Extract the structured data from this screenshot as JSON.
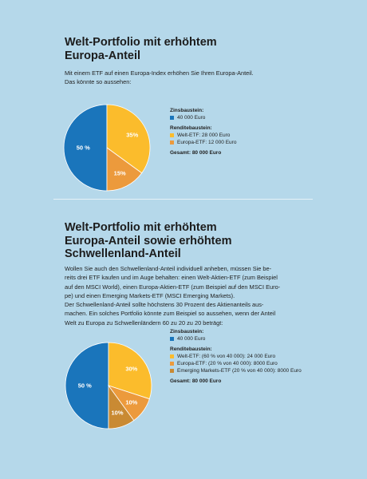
{
  "section1": {
    "title_line1": "Welt-Portfolio mit erhöhtem",
    "title_line2": "Europa-Anteil",
    "intro_line1": "Mit einem ETF auf einen Europa-Index erhöhen Sie Ihren Europa-Anteil.",
    "intro_line2": "Das könnte so aussehen:",
    "legend": {
      "zins_head": "Zinsbaustein:",
      "zins_item": "40 000 Euro",
      "rendite_head": "Renditebaustein:",
      "rendite_items": [
        "Welt-ETF: 28 000 Euro",
        "Europa-ETF: 12 000 Euro"
      ],
      "total": "Gesamt: 80 000 Euro"
    }
  },
  "section2": {
    "title_line1": "Welt-Portfolio mit erhöhtem",
    "title_line2": "Europa-Anteil sowie erhöhtem",
    "title_line3": "Schwellenland-Anteil",
    "intro_lines": [
      "Wollen Sie auch den Schwellenland-Anteil individuell anheben, müssen Sie be-",
      "reits drei ETF kaufen und im Auge behalten: einen Welt-Aktien-ETF (zum Beispiel",
      "auf den MSCI World), einen Europa-Aktien-ETF (zum Beispiel auf den MSCI Euro-",
      "pe) und einen Emerging Markets-ETF (MSCI Emerging Markets).",
      "Der Schwellenland-Anteil sollte höchstens 30 Prozent des Aktienanteils aus-",
      "machen. Ein solches Portfolio könnte zum Beispiel so aussehen, wenn der Anteil",
      "Welt zu Europa zu Schwellenländern 60 zu 20 zu 20 beträgt:"
    ],
    "legend": {
      "zins_head": "Zinsbaustein:",
      "zins_item": "40 000 Euro",
      "rendite_head": "Renditebaustein:",
      "rendite_items": [
        "Welt-ETF: (60 % von 40 000): 24 000 Euro",
        "Europa-ETF: (20 % von 40 000): 8000 Euro",
        "Emerging Markets-ETF (20 % von 40 000): 8000 Euro"
      ],
      "total": "Gesamt: 80 000 Euro"
    }
  },
  "colors": {
    "blue": "#1a75bb",
    "yellow": "#fbbc2c",
    "orange": "#ec9a3c",
    "brown": "#c98a33",
    "background": "#b5d8ea"
  },
  "chart_data": [
    {
      "type": "pie",
      "categories": [
        "Zinsbaustein",
        "Welt-ETF",
        "Europa-ETF"
      ],
      "values": [
        50,
        35,
        15
      ],
      "labels": [
        "50 %",
        "35%",
        "15%"
      ],
      "colors": [
        "#1a75bb",
        "#fbbc2c",
        "#ec9a3c"
      ]
    },
    {
      "type": "pie",
      "categories": [
        "Zinsbaustein",
        "Welt-ETF",
        "Europa-ETF",
        "Emerging Markets-ETF"
      ],
      "values": [
        50,
        30,
        10,
        10
      ],
      "labels": [
        "50 %",
        "30%",
        "10%",
        "10%"
      ],
      "colors": [
        "#1a75bb",
        "#fbbc2c",
        "#ec9a3c",
        "#c98a33"
      ]
    }
  ]
}
